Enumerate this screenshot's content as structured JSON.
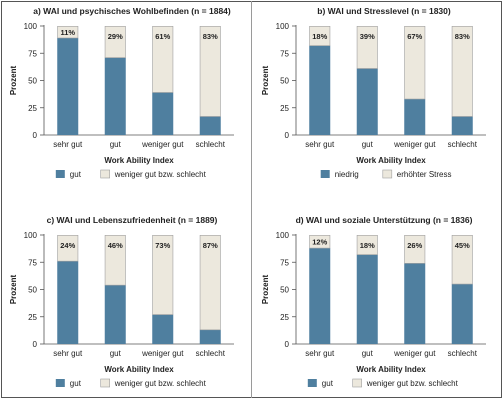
{
  "colors": {
    "primary": "#4f7f9f",
    "secondary": "#ece8dd",
    "secondary_stroke": "#9f9f9f",
    "text": "#222222",
    "axis": "#555555"
  },
  "chart_data": [
    {
      "type": "bar",
      "stacked": true,
      "title": "a) WAI und psychisches Wohlbefinden (n = 1884)",
      "xlabel": "Work Ability Index",
      "ylabel": "Prozent",
      "ylim": [
        0,
        100
      ],
      "yticks": [
        "0",
        "25",
        "50",
        "75",
        "100"
      ],
      "categories": [
        "sehr gut",
        "gut",
        "weniger gut",
        "schlecht"
      ],
      "series": [
        {
          "name": "gut",
          "values": [
            89,
            71,
            39,
            17
          ]
        },
        {
          "name": "weniger gut bzw. schlecht",
          "values": [
            11,
            29,
            61,
            83
          ]
        }
      ],
      "data_labels": [
        "11%",
        "29%",
        "61%",
        "83%"
      ],
      "legend": [
        "gut",
        "weniger gut bzw. schlecht"
      ],
      "legend_position": "bottom"
    },
    {
      "type": "bar",
      "stacked": true,
      "title": "b) WAI und Stresslevel (n = 1830)",
      "xlabel": "Work Ability Index",
      "ylabel": "Prozent",
      "ylim": [
        0,
        100
      ],
      "yticks": [
        "0",
        "25",
        "50",
        "75",
        "100"
      ],
      "categories": [
        "sehr gut",
        "gut",
        "weniger gut",
        "schlecht"
      ],
      "series": [
        {
          "name": "niedrig",
          "values": [
            82,
            61,
            33,
            17
          ]
        },
        {
          "name": "erhöhter Stress",
          "values": [
            18,
            39,
            67,
            83
          ]
        }
      ],
      "data_labels": [
        "18%",
        "39%",
        "67%",
        "83%"
      ],
      "legend": [
        "niedrig",
        "erhöhter Stress"
      ],
      "legend_position": "bottom"
    },
    {
      "type": "bar",
      "stacked": true,
      "title": "c) WAI und Lebenszufriedenheit (n = 1889)",
      "xlabel": "Work Ability Index",
      "ylabel": "Prozent",
      "ylim": [
        0,
        100
      ],
      "yticks": [
        "0",
        "25",
        "50",
        "75",
        "100"
      ],
      "categories": [
        "sehr gut",
        "gut",
        "weniger gut",
        "schlecht"
      ],
      "series": [
        {
          "name": "gut",
          "values": [
            76,
            54,
            27,
            13
          ]
        },
        {
          "name": "weniger gut bzw. schlecht",
          "values": [
            24,
            46,
            73,
            87
          ]
        }
      ],
      "data_labels": [
        "24%",
        "46%",
        "73%",
        "87%"
      ],
      "legend": [
        "gut",
        "weniger gut bzw. schlecht"
      ],
      "legend_position": "bottom"
    },
    {
      "type": "bar",
      "stacked": true,
      "title": "d) WAI und soziale Unterstützung (n = 1836)",
      "xlabel": "Work Ability Index",
      "ylabel": "Prozent",
      "ylim": [
        0,
        100
      ],
      "yticks": [
        "0",
        "25",
        "50",
        "75",
        "100"
      ],
      "categories": [
        "sehr gut",
        "gut",
        "weniger gut",
        "schlecht"
      ],
      "series": [
        {
          "name": "gut",
          "values": [
            88,
            82,
            74,
            55
          ]
        },
        {
          "name": "weniger gut bzw. schlecht",
          "values": [
            12,
            18,
            26,
            45
          ]
        }
      ],
      "data_labels": [
        "12%",
        "18%",
        "26%",
        "45%"
      ],
      "legend": [
        "gut",
        "weniger gut bzw. schlecht"
      ],
      "legend_position": "bottom"
    }
  ]
}
